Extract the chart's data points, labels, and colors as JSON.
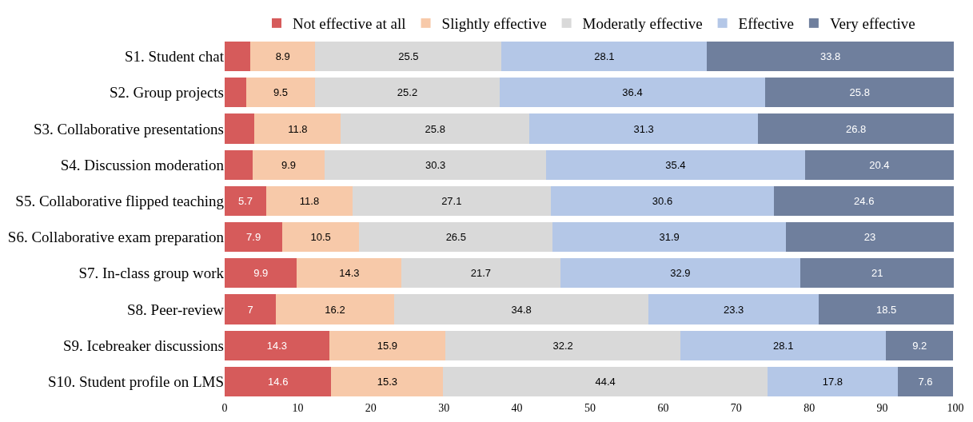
{
  "chart_data": {
    "type": "bar",
    "orientation": "horizontal",
    "stacked": true,
    "categories": [
      "S1. Student chat",
      "S2. Group projects",
      "S3. Collaborative presentations",
      "S4. Discussion moderation",
      "S5. Collaborative flipped teaching",
      "S6. Collaborative exam preparation",
      "S7. In-class group work",
      "S8. Peer-review",
      "S9. Icebreaker discussions",
      "S10. Student profile on LMS"
    ],
    "series": [
      {
        "name": "Not effective at all",
        "color": "#d65b5b",
        "values": [
          3.5,
          2.9,
          4.1,
          3.8,
          5.7,
          7.9,
          9.9,
          7,
          14.3,
          14.6
        ],
        "value_labels": [
          null,
          null,
          null,
          null,
          "5.7",
          "7.9",
          "9.9",
          "7",
          "14.3",
          "14.6"
        ]
      },
      {
        "name": "Slightly effective",
        "color": "#f7c9a9",
        "values": [
          8.9,
          9.5,
          11.8,
          9.9,
          11.8,
          10.5,
          14.3,
          16.2,
          15.9,
          15.3
        ],
        "value_labels": [
          "8.9",
          "9.5",
          "11.8",
          "9.9",
          "11.8",
          "10.5",
          "14.3",
          "16.2",
          "15.9",
          "15.3"
        ]
      },
      {
        "name": "Moderatly effective",
        "color": "#d9d9d9",
        "values": [
          25.5,
          25.2,
          25.8,
          30.3,
          27.1,
          26.5,
          21.7,
          34.8,
          32.2,
          44.4
        ],
        "value_labels": [
          "25.5",
          "25.2",
          "25.8",
          "30.3",
          "27.1",
          "26.5",
          "21.7",
          "34.8",
          "32.2",
          "44.4"
        ]
      },
      {
        "name": "Effective",
        "color": "#b4c7e7",
        "values": [
          28.1,
          36.4,
          31.3,
          35.4,
          30.6,
          31.9,
          32.9,
          23.3,
          28.1,
          17.8
        ],
        "value_labels": [
          "28.1",
          "36.4",
          "31.3",
          "35.4",
          "30.6",
          "31.9",
          "32.9",
          "23.3",
          "28.1",
          "17.8"
        ]
      },
      {
        "name": "Very effective",
        "color": "#6f7f9d",
        "values": [
          33.8,
          25.8,
          26.8,
          20.4,
          24.6,
          23,
          21,
          18.5,
          9.2,
          7.6
        ],
        "value_labels": [
          "33.8",
          "25.8",
          "26.8",
          "20.4",
          "24.6",
          "23",
          "21",
          "18.5",
          "9.2",
          "7.6"
        ]
      }
    ],
    "xlim": [
      0,
      100
    ],
    "xticks": [
      0,
      10,
      20,
      30,
      40,
      50,
      60,
      70,
      80,
      90,
      100
    ],
    "grid": false,
    "legend": "top"
  }
}
